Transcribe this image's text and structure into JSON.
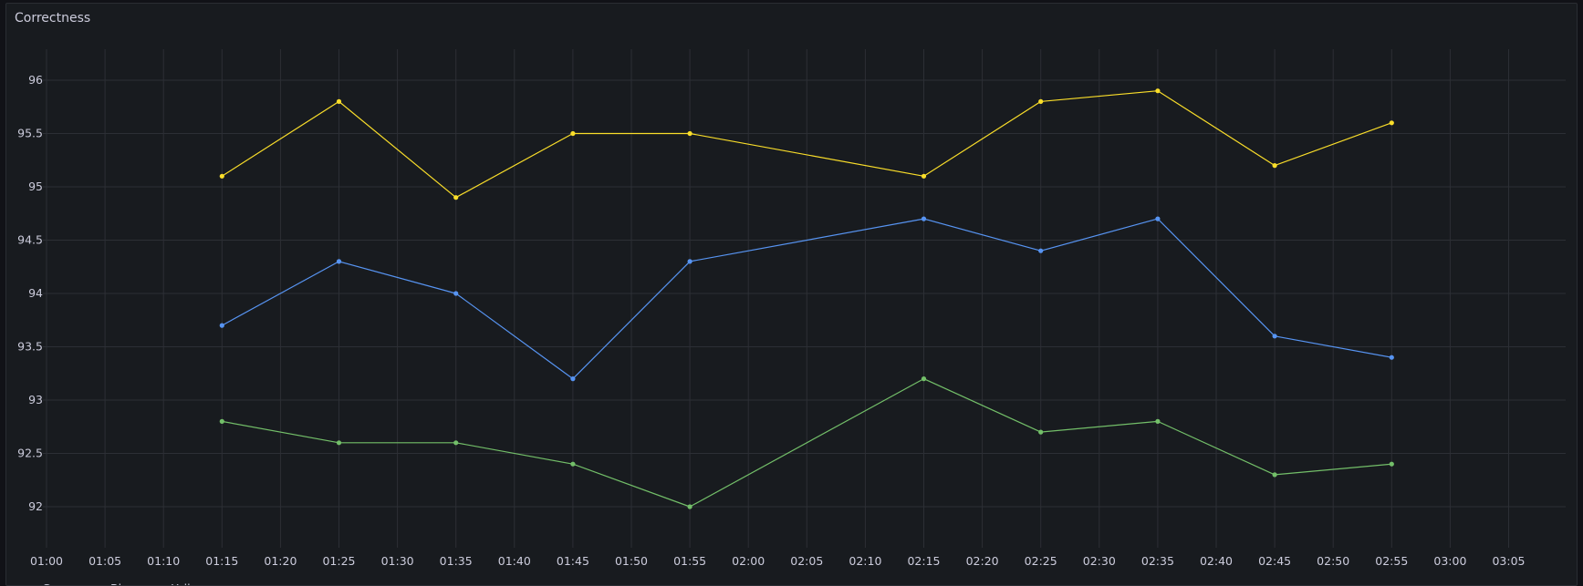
{
  "panel": {
    "title": "Correctness"
  },
  "colors": {
    "background": "#181b1f",
    "grid": "#2c2f35",
    "text": "#ccccdc",
    "green": "#73bf69",
    "blue": "#5794f2",
    "yellow": "#fade2a"
  },
  "chart_data": {
    "type": "line",
    "title": "Correctness",
    "x": [
      "01:15",
      "01:25",
      "01:35",
      "01:45",
      "01:55",
      "02:15",
      "02:25",
      "02:35",
      "02:45",
      "02:55"
    ],
    "x_tick_labels": [
      "01:00",
      "01:05",
      "01:10",
      "01:15",
      "01:20",
      "01:25",
      "01:30",
      "01:35",
      "01:40",
      "01:45",
      "01:50",
      "01:55",
      "02:00",
      "02:05",
      "02:10",
      "02:15",
      "02:20",
      "02:25",
      "02:30",
      "02:35",
      "02:40",
      "02:45",
      "02:50",
      "02:55",
      "03:00",
      "03:05"
    ],
    "x_range": [
      "01:00",
      "03:10"
    ],
    "y_tick_labels": [
      "92",
      "92.5",
      "93",
      "93.5",
      "94",
      "94.5",
      "95",
      "95.5",
      "96"
    ],
    "ylim": [
      91.75,
      96.3
    ],
    "grid": true,
    "legend_position": "bottom-left",
    "series": [
      {
        "name": "Green",
        "color": "#73bf69",
        "values": [
          92.8,
          92.6,
          92.6,
          92.4,
          92.0,
          93.2,
          92.7,
          92.8,
          92.3,
          92.4
        ]
      },
      {
        "name": "Blue",
        "color": "#5794f2",
        "values": [
          93.7,
          94.3,
          94.0,
          93.2,
          94.3,
          94.7,
          94.4,
          94.7,
          93.6,
          93.4
        ]
      },
      {
        "name": "Yellow",
        "color": "#fade2a",
        "values": [
          95.1,
          95.8,
          94.9,
          95.5,
          95.5,
          95.1,
          95.8,
          95.9,
          95.2,
          95.6
        ]
      }
    ]
  }
}
